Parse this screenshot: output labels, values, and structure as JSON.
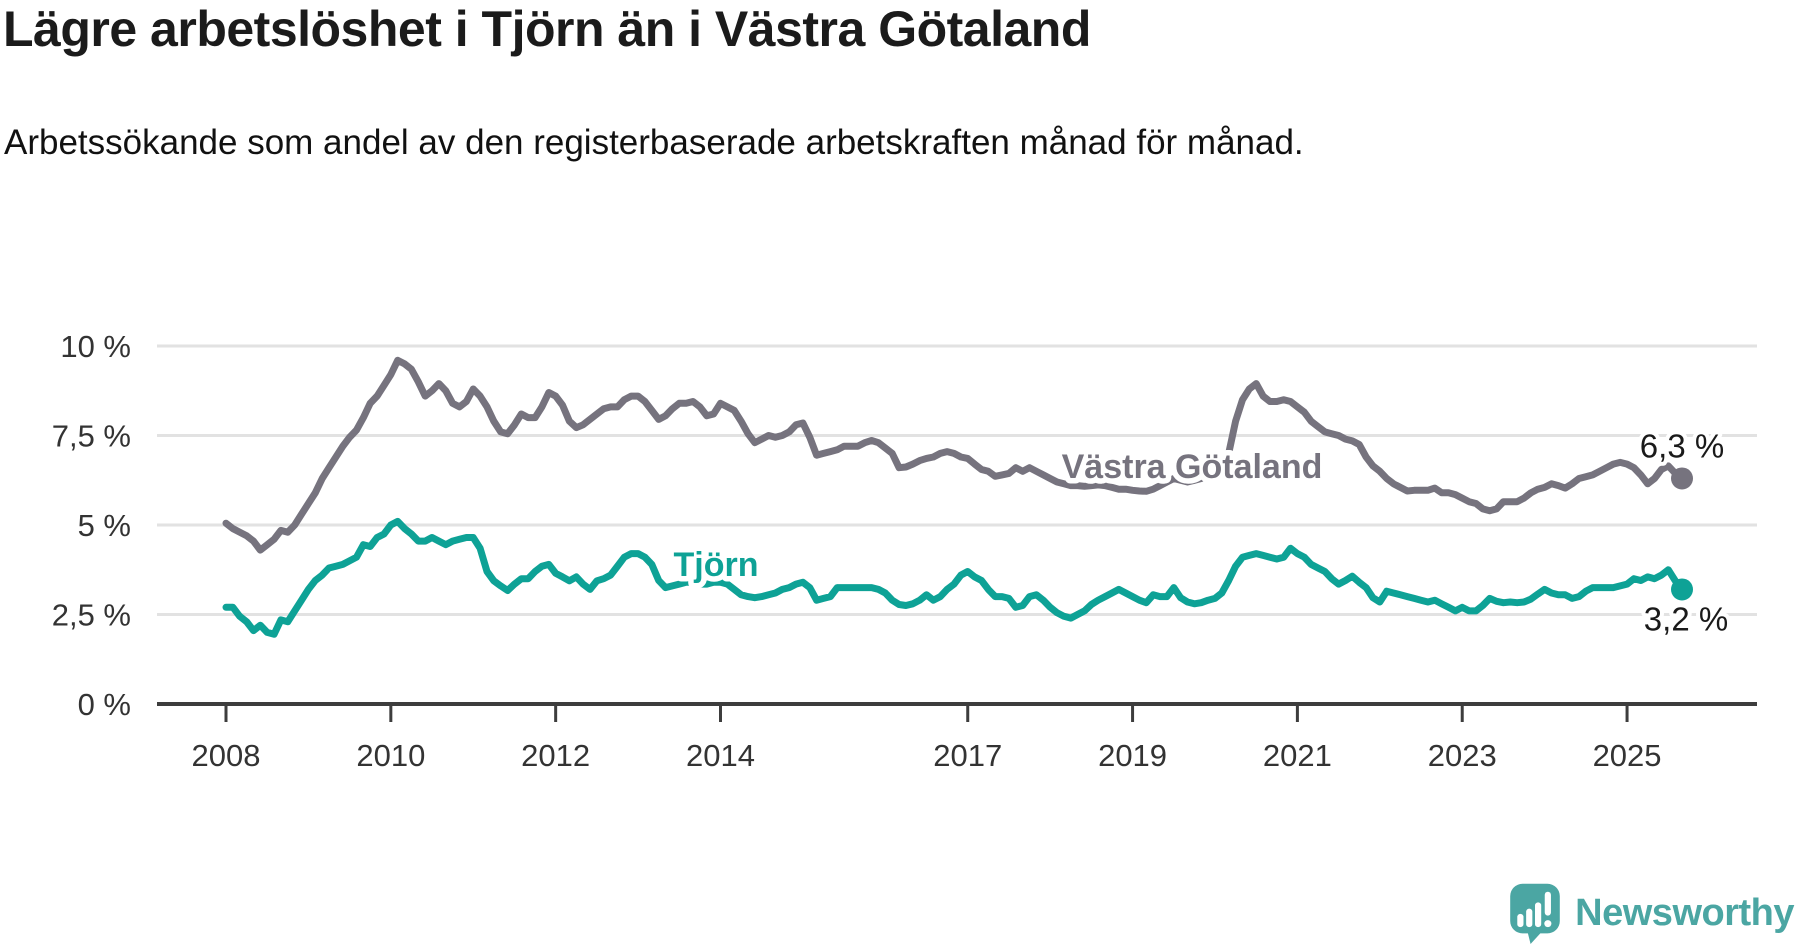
{
  "header": {
    "title": "Lägre arbetslöshet i Tjörn än i Västra Götaland",
    "subtitle": "Arbetssökande som andel av den registerbaserade arbetskraften månad för månad."
  },
  "footer": {
    "brand": "Newsworthy"
  },
  "colors": {
    "tjorn_teal": "#0ea296",
    "vastra_gray": "#76737e",
    "grid": "#e2e2e2",
    "axis": "#3d3d3d",
    "tick_text": "#333333",
    "label_text": "#1a1a1a",
    "brand_teal": "#4ba6a3"
  },
  "chart_data": {
    "type": "line",
    "unit": "%",
    "x_start": "2008-01",
    "x_end": "2025-09",
    "x_frequency": "monthly",
    "ylim": [
      0,
      10.5
    ],
    "grid": true,
    "y_ticks": [
      {
        "value": 0,
        "label": "0 %"
      },
      {
        "value": 2.5,
        "label": "2,5 %"
      },
      {
        "value": 5,
        "label": "5 %"
      },
      {
        "value": 7.5,
        "label": "7,5 %"
      },
      {
        "value": 10,
        "label": "10 %"
      }
    ],
    "x_ticks": [
      {
        "year": 2008,
        "label": "2008"
      },
      {
        "year": 2010,
        "label": "2010"
      },
      {
        "year": 2012,
        "label": "2012"
      },
      {
        "year": 2014,
        "label": "2014"
      },
      {
        "year": 2017,
        "label": "2017"
      },
      {
        "year": 2019,
        "label": "2019"
      },
      {
        "year": 2021,
        "label": "2021"
      },
      {
        "year": 2023,
        "label": "2023"
      },
      {
        "year": 2025,
        "label": "2025"
      }
    ],
    "series": [
      {
        "name": "Västra Götaland",
        "color": "#76737e",
        "end_label": "6,3 %",
        "values": [
          5.05,
          4.9,
          4.8,
          4.7,
          4.55,
          4.3,
          4.45,
          4.6,
          4.85,
          4.8,
          5.0,
          5.3,
          5.6,
          5.9,
          6.3,
          6.6,
          6.9,
          7.2,
          7.45,
          7.65,
          8.0,
          8.4,
          8.6,
          8.9,
          9.2,
          9.6,
          9.5,
          9.35,
          9.0,
          8.6,
          8.75,
          8.95,
          8.75,
          8.4,
          8.3,
          8.45,
          8.8,
          8.6,
          8.3,
          7.9,
          7.6,
          7.55,
          7.8,
          8.1,
          8.0,
          8.0,
          8.3,
          8.7,
          8.6,
          8.35,
          7.9,
          7.72,
          7.8,
          7.95,
          8.1,
          8.25,
          8.3,
          8.3,
          8.5,
          8.6,
          8.6,
          8.45,
          8.2,
          7.95,
          8.05,
          8.25,
          8.4,
          8.4,
          8.45,
          8.3,
          8.05,
          8.1,
          8.4,
          8.3,
          8.2,
          7.9,
          7.55,
          7.3,
          7.4,
          7.5,
          7.45,
          7.5,
          7.6,
          7.8,
          7.85,
          7.45,
          6.95,
          7.0,
          7.05,
          7.1,
          7.2,
          7.2,
          7.2,
          7.3,
          7.36,
          7.3,
          7.15,
          7.0,
          6.6,
          6.62,
          6.7,
          6.8,
          6.86,
          6.9,
          7.0,
          7.05,
          7.0,
          6.9,
          6.86,
          6.7,
          6.55,
          6.5,
          6.36,
          6.4,
          6.44,
          6.6,
          6.5,
          6.6,
          6.5,
          6.4,
          6.3,
          6.2,
          6.15,
          6.1,
          6.1,
          6.08,
          6.1,
          6.12,
          6.1,
          6.05,
          6.0,
          6.0,
          5.97,
          5.95,
          5.94,
          6.0,
          6.1,
          6.2,
          6.3,
          6.25,
          6.2,
          6.25,
          6.3,
          6.4,
          6.5,
          6.6,
          7.0,
          7.9,
          8.5,
          8.8,
          8.95,
          8.6,
          8.45,
          8.45,
          8.5,
          8.45,
          8.3,
          8.15,
          7.9,
          7.75,
          7.6,
          7.55,
          7.5,
          7.4,
          7.35,
          7.25,
          6.9,
          6.65,
          6.5,
          6.3,
          6.15,
          6.05,
          5.95,
          5.97,
          5.97,
          5.97,
          6.03,
          5.9,
          5.9,
          5.85,
          5.75,
          5.65,
          5.6,
          5.45,
          5.4,
          5.45,
          5.65,
          5.65,
          5.65,
          5.75,
          5.9,
          6.0,
          6.05,
          6.15,
          6.1,
          6.03,
          6.15,
          6.3,
          6.35,
          6.4,
          6.5,
          6.6,
          6.7,
          6.75,
          6.7,
          6.6,
          6.4,
          6.15,
          6.3,
          6.55,
          6.65,
          6.45,
          6.3
        ]
      },
      {
        "name": "Tjörn",
        "color": "#0ea296",
        "end_label": "3,2 %",
        "values": [
          2.7,
          2.7,
          2.45,
          2.3,
          2.05,
          2.2,
          2.0,
          1.95,
          2.35,
          2.3,
          2.6,
          2.9,
          3.2,
          3.45,
          3.6,
          3.8,
          3.85,
          3.9,
          4.0,
          4.1,
          4.45,
          4.4,
          4.65,
          4.75,
          5.0,
          5.1,
          4.9,
          4.75,
          4.55,
          4.55,
          4.65,
          4.55,
          4.45,
          4.55,
          4.6,
          4.65,
          4.65,
          4.35,
          3.7,
          3.44,
          3.3,
          3.17,
          3.35,
          3.5,
          3.5,
          3.7,
          3.85,
          3.9,
          3.65,
          3.55,
          3.44,
          3.55,
          3.35,
          3.2,
          3.44,
          3.5,
          3.6,
          3.85,
          4.1,
          4.2,
          4.2,
          4.1,
          3.9,
          3.45,
          3.25,
          3.3,
          3.35,
          3.4,
          3.4,
          3.35,
          3.35,
          3.4,
          3.4,
          3.35,
          3.2,
          3.05,
          3.0,
          2.97,
          3.0,
          3.05,
          3.1,
          3.2,
          3.25,
          3.35,
          3.4,
          3.25,
          2.9,
          2.95,
          3.0,
          3.25,
          3.25,
          3.25,
          3.25,
          3.25,
          3.25,
          3.2,
          3.1,
          2.9,
          2.78,
          2.75,
          2.8,
          2.9,
          3.05,
          2.9,
          3.0,
          3.2,
          3.35,
          3.6,
          3.7,
          3.55,
          3.45,
          3.2,
          3.0,
          3.0,
          2.95,
          2.7,
          2.75,
          3.0,
          3.05,
          2.9,
          2.7,
          2.55,
          2.45,
          2.4,
          2.5,
          2.6,
          2.78,
          2.9,
          3.0,
          3.1,
          3.2,
          3.1,
          3.0,
          2.9,
          2.83,
          3.05,
          3.0,
          3.0,
          3.25,
          2.97,
          2.85,
          2.8,
          2.83,
          2.9,
          2.95,
          3.1,
          3.45,
          3.85,
          4.1,
          4.15,
          4.2,
          4.15,
          4.1,
          4.05,
          4.1,
          4.35,
          4.2,
          4.1,
          3.9,
          3.8,
          3.7,
          3.5,
          3.35,
          3.45,
          3.57,
          3.4,
          3.25,
          2.97,
          2.85,
          3.15,
          3.1,
          3.05,
          3.0,
          2.95,
          2.9,
          2.85,
          2.9,
          2.8,
          2.7,
          2.6,
          2.7,
          2.6,
          2.6,
          2.75,
          2.95,
          2.87,
          2.83,
          2.85,
          2.83,
          2.85,
          2.93,
          3.07,
          3.2,
          3.1,
          3.05,
          3.05,
          2.95,
          3.0,
          3.15,
          3.25,
          3.25,
          3.25,
          3.25,
          3.3,
          3.35,
          3.5,
          3.45,
          3.55,
          3.5,
          3.6,
          3.75,
          3.45,
          3.2
        ]
      }
    ]
  }
}
